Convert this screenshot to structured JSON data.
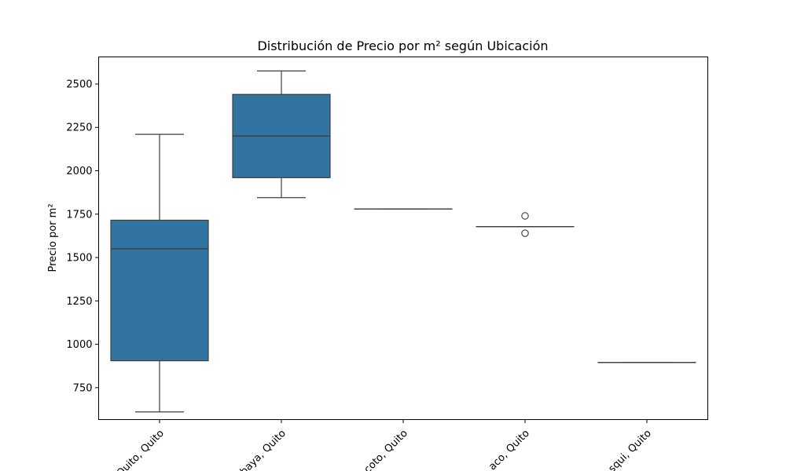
{
  "chart_data": {
    "type": "box",
    "title": "Distribución de Precio por m² según Ubicación",
    "xlabel": "",
    "ylabel": "Precio por m²",
    "ylim": [
      566,
      2656
    ],
    "yticks": [
      750,
      1000,
      1250,
      1500,
      1750,
      2000,
      2250,
      2500
    ],
    "grid": false,
    "box_color": "#3274a1",
    "line_color": "#3f3f3f",
    "categories": [
      "Quito, Quito",
      "Cumbaya, Quito",
      "Conocoto, Quito",
      "Pomasqui... Quito",
      "...squi, Quito"
    ],
    "visible_tick_labels": [
      "Quito, Quito",
      "baya, Quito",
      "coto, Quito",
      "aco, Quito",
      "squi, Quito"
    ],
    "boxes": [
      {
        "whisker_low": 610,
        "q1": 905,
        "median": 1550,
        "q3": 1715,
        "whisker_high": 2210,
        "outliers": []
      },
      {
        "whisker_low": 1845,
        "q1": 1960,
        "median": 2200,
        "q3": 2440,
        "whisker_high": 2575,
        "outliers": []
      },
      {
        "whisker_low": 1780,
        "q1": 1780,
        "median": 1780,
        "q3": 1780,
        "whisker_high": 1780,
        "outliers": []
      },
      {
        "whisker_low": 1678,
        "q1": 1678,
        "median": 1678,
        "q3": 1678,
        "whisker_high": 1678,
        "outliers": [
          1740,
          1640
        ]
      },
      {
        "whisker_low": 895,
        "q1": 895,
        "median": 895,
        "q3": 895,
        "whisker_high": 895,
        "outliers": []
      }
    ]
  }
}
